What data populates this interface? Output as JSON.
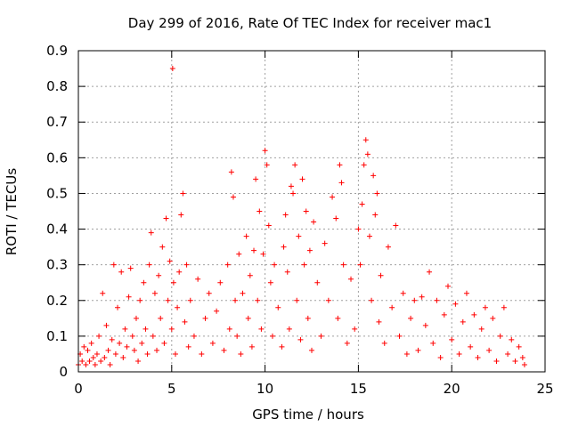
{
  "chart_data": {
    "type": "scatter",
    "title": "Day 299 of 2016, Rate Of TEC Index for receiver mac1",
    "xlabel": "GPS time / hours",
    "ylabel": "ROTI / TECUs",
    "xlim": [
      0,
      25
    ],
    "ylim": [
      0,
      0.9
    ],
    "x_ticks": [
      0,
      5,
      10,
      15,
      20,
      25
    ],
    "x_tick_labels": [
      "0",
      "5",
      "10",
      "15",
      "20",
      "25"
    ],
    "y_ticks": [
      0,
      0.1,
      0.2,
      0.3,
      0.4,
      0.5,
      0.6,
      0.7,
      0.8,
      0.9
    ],
    "y_tick_labels": [
      "0",
      "0.1",
      "0.2",
      "0.3",
      "0.4",
      "0.5",
      "0.6",
      "0.7",
      "0.8",
      "0.9"
    ],
    "grid": true,
    "marker": "+",
    "color": "#ff0000",
    "series": [
      {
        "name": "ROTI",
        "points": [
          [
            0.0,
            0.02
          ],
          [
            0.1,
            0.05
          ],
          [
            0.2,
            0.03
          ],
          [
            0.3,
            0.07
          ],
          [
            0.4,
            0.02
          ],
          [
            0.5,
            0.06
          ],
          [
            0.6,
            0.03
          ],
          [
            0.7,
            0.08
          ],
          [
            0.8,
            0.04
          ],
          [
            0.9,
            0.02
          ],
          [
            1.0,
            0.05
          ],
          [
            1.1,
            0.1
          ],
          [
            1.2,
            0.03
          ],
          [
            1.3,
            0.22
          ],
          [
            1.4,
            0.04
          ],
          [
            1.5,
            0.13
          ],
          [
            1.6,
            0.06
          ],
          [
            1.7,
            0.02
          ],
          [
            1.8,
            0.09
          ],
          [
            1.9,
            0.3
          ],
          [
            2.0,
            0.05
          ],
          [
            2.1,
            0.18
          ],
          [
            2.2,
            0.08
          ],
          [
            2.3,
            0.28
          ],
          [
            2.4,
            0.04
          ],
          [
            2.5,
            0.12
          ],
          [
            2.6,
            0.07
          ],
          [
            2.7,
            0.21
          ],
          [
            2.8,
            0.29
          ],
          [
            2.9,
            0.1
          ],
          [
            3.0,
            0.06
          ],
          [
            3.1,
            0.15
          ],
          [
            3.2,
            0.03
          ],
          [
            3.3,
            0.2
          ],
          [
            3.4,
            0.08
          ],
          [
            3.5,
            0.25
          ],
          [
            3.6,
            0.12
          ],
          [
            3.7,
            0.05
          ],
          [
            3.8,
            0.3
          ],
          [
            3.9,
            0.39
          ],
          [
            4.0,
            0.1
          ],
          [
            4.1,
            0.22
          ],
          [
            4.2,
            0.06
          ],
          [
            4.3,
            0.27
          ],
          [
            4.4,
            0.15
          ],
          [
            4.5,
            0.35
          ],
          [
            4.6,
            0.08
          ],
          [
            4.7,
            0.43
          ],
          [
            4.8,
            0.2
          ],
          [
            4.9,
            0.31
          ],
          [
            5.0,
            0.12
          ],
          [
            5.05,
            0.85
          ],
          [
            5.1,
            0.25
          ],
          [
            5.2,
            0.05
          ],
          [
            5.3,
            0.18
          ],
          [
            5.4,
            0.28
          ],
          [
            5.5,
            0.44
          ],
          [
            5.6,
            0.5
          ],
          [
            5.7,
            0.14
          ],
          [
            5.8,
            0.3
          ],
          [
            5.9,
            0.07
          ],
          [
            6.0,
            0.2
          ],
          [
            6.2,
            0.1
          ],
          [
            6.4,
            0.26
          ],
          [
            6.6,
            0.05
          ],
          [
            6.8,
            0.15
          ],
          [
            7.0,
            0.22
          ],
          [
            7.2,
            0.08
          ],
          [
            7.4,
            0.17
          ],
          [
            7.6,
            0.25
          ],
          [
            7.8,
            0.06
          ],
          [
            8.0,
            0.3
          ],
          [
            8.1,
            0.12
          ],
          [
            8.2,
            0.56
          ],
          [
            8.3,
            0.49
          ],
          [
            8.4,
            0.2
          ],
          [
            8.5,
            0.1
          ],
          [
            8.6,
            0.33
          ],
          [
            8.7,
            0.05
          ],
          [
            8.8,
            0.22
          ],
          [
            9.0,
            0.38
          ],
          [
            9.1,
            0.15
          ],
          [
            9.2,
            0.27
          ],
          [
            9.3,
            0.07
          ],
          [
            9.4,
            0.34
          ],
          [
            9.5,
            0.54
          ],
          [
            9.6,
            0.2
          ],
          [
            9.7,
            0.45
          ],
          [
            9.8,
            0.12
          ],
          [
            9.9,
            0.33
          ],
          [
            10.0,
            0.62
          ],
          [
            10.1,
            0.58
          ],
          [
            10.2,
            0.41
          ],
          [
            10.3,
            0.25
          ],
          [
            10.4,
            0.1
          ],
          [
            10.5,
            0.3
          ],
          [
            10.7,
            0.18
          ],
          [
            10.9,
            0.07
          ],
          [
            11.0,
            0.35
          ],
          [
            11.1,
            0.44
          ],
          [
            11.2,
            0.28
          ],
          [
            11.3,
            0.12
          ],
          [
            11.4,
            0.52
          ],
          [
            11.5,
            0.5
          ],
          [
            11.6,
            0.58
          ],
          [
            11.7,
            0.2
          ],
          [
            11.8,
            0.38
          ],
          [
            11.9,
            0.09
          ],
          [
            12.0,
            0.54
          ],
          [
            12.1,
            0.3
          ],
          [
            12.2,
            0.45
          ],
          [
            12.3,
            0.15
          ],
          [
            12.4,
            0.34
          ],
          [
            12.5,
            0.06
          ],
          [
            12.6,
            0.42
          ],
          [
            12.8,
            0.25
          ],
          [
            13.0,
            0.1
          ],
          [
            13.2,
            0.36
          ],
          [
            13.4,
            0.2
          ],
          [
            13.6,
            0.49
          ],
          [
            13.8,
            0.43
          ],
          [
            13.9,
            0.15
          ],
          [
            14.0,
            0.58
          ],
          [
            14.1,
            0.53
          ],
          [
            14.2,
            0.3
          ],
          [
            14.4,
            0.08
          ],
          [
            14.6,
            0.26
          ],
          [
            14.8,
            0.12
          ],
          [
            15.0,
            0.4
          ],
          [
            15.1,
            0.3
          ],
          [
            15.2,
            0.47
          ],
          [
            15.3,
            0.58
          ],
          [
            15.4,
            0.65
          ],
          [
            15.5,
            0.61
          ],
          [
            15.6,
            0.38
          ],
          [
            15.7,
            0.2
          ],
          [
            15.8,
            0.55
          ],
          [
            15.9,
            0.44
          ],
          [
            16.0,
            0.5
          ],
          [
            16.1,
            0.14
          ],
          [
            16.2,
            0.27
          ],
          [
            16.4,
            0.08
          ],
          [
            16.6,
            0.35
          ],
          [
            16.8,
            0.18
          ],
          [
            17.0,
            0.41
          ],
          [
            17.2,
            0.1
          ],
          [
            17.4,
            0.22
          ],
          [
            17.6,
            0.05
          ],
          [
            17.8,
            0.15
          ],
          [
            18.0,
            0.2
          ],
          [
            18.2,
            0.06
          ],
          [
            18.4,
            0.21
          ],
          [
            18.6,
            0.13
          ],
          [
            18.8,
            0.28
          ],
          [
            19.0,
            0.08
          ],
          [
            19.2,
            0.2
          ],
          [
            19.4,
            0.04
          ],
          [
            19.6,
            0.16
          ],
          [
            19.8,
            0.24
          ],
          [
            20.0,
            0.09
          ],
          [
            20.2,
            0.19
          ],
          [
            20.4,
            0.05
          ],
          [
            20.6,
            0.14
          ],
          [
            20.8,
            0.22
          ],
          [
            21.0,
            0.07
          ],
          [
            21.2,
            0.16
          ],
          [
            21.4,
            0.04
          ],
          [
            21.6,
            0.12
          ],
          [
            21.8,
            0.18
          ],
          [
            22.0,
            0.06
          ],
          [
            22.2,
            0.15
          ],
          [
            22.4,
            0.03
          ],
          [
            22.6,
            0.1
          ],
          [
            22.8,
            0.18
          ],
          [
            23.0,
            0.05
          ],
          [
            23.2,
            0.09
          ],
          [
            23.4,
            0.03
          ],
          [
            23.6,
            0.07
          ],
          [
            23.8,
            0.04
          ],
          [
            23.9,
            0.02
          ]
        ]
      }
    ]
  }
}
